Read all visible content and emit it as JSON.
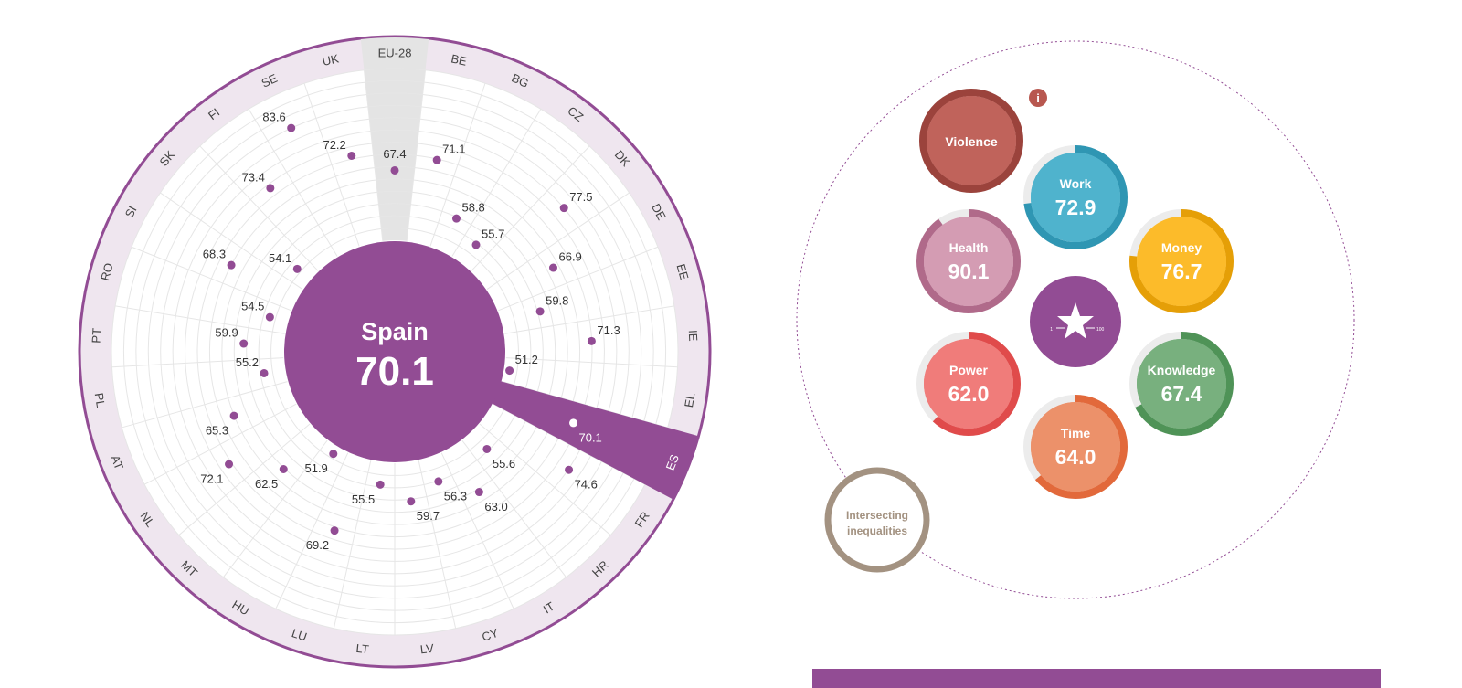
{
  "selected": {
    "country": "Spain",
    "code": "ES",
    "value": "70.1"
  },
  "colors": {
    "accent": "#924c94",
    "ring_fill": "#efe6ef",
    "eu_sector": "#e4e4e4",
    "grid": "#e6e6e6"
  },
  "chart_data": {
    "type": "radial-scatter",
    "scale": [
      0,
      100
    ],
    "highlight": "ES",
    "reference": "EU-28",
    "categories": [
      "EU-28",
      "BE",
      "BG",
      "CZ",
      "DK",
      "DE",
      "EE",
      "IE",
      "EL",
      "ES",
      "FR",
      "HR",
      "IT",
      "CY",
      "LV",
      "LT",
      "LU",
      "HU",
      "MT",
      "NL",
      "AT",
      "PL",
      "PT",
      "RO",
      "SI",
      "SK",
      "FI",
      "SE",
      "UK"
    ],
    "values": [
      67.4,
      71.1,
      58.8,
      55.7,
      77.5,
      66.9,
      59.8,
      71.3,
      51.2,
      70.1,
      74.6,
      55.6,
      63.0,
      56.3,
      59.7,
      55.5,
      69.2,
      51.9,
      62.5,
      72.1,
      65.3,
      55.2,
      59.9,
      54.5,
      68.3,
      54.1,
      73.4,
      83.6,
      72.2
    ],
    "labels": [
      "67.4",
      "71.1",
      "58.8",
      "55.7",
      "77.5",
      "66.9",
      "59.8",
      "71.3",
      "51.2",
      "70.1",
      "74.6",
      "55.6",
      "63.0",
      "56.3",
      "59.7",
      "55.5",
      "69.2",
      "51.9",
      "62.5",
      "72.1",
      "65.3",
      "55.2",
      "59.9",
      "54.5",
      "68.3",
      "54.1",
      "73.4",
      "83.6",
      "72.2"
    ]
  },
  "domains": [
    {
      "key": "violence",
      "name": "Violence",
      "value": "",
      "score": null,
      "color": "#b8574f",
      "dark": "#9b433c",
      "light": "#c0635b"
    },
    {
      "key": "work",
      "name": "Work",
      "value": "72.9",
      "score": 72.9,
      "color": "#48aec9",
      "dark": "#2f96b3",
      "light": "#4fb3cd"
    },
    {
      "key": "health",
      "name": "Health",
      "value": "90.1",
      "score": 90.1,
      "color": "#c47a99",
      "dark": "#b06a8a",
      "light": "#d49cb3"
    },
    {
      "key": "money",
      "name": "Money",
      "value": "76.7",
      "score": 76.7,
      "color": "#f5b118",
      "dark": "#e59f07",
      "light": "#fcbb2a"
    },
    {
      "key": "power",
      "name": "Power",
      "value": "62.0",
      "score": 62.0,
      "color": "#ee6a68",
      "dark": "#e04b4b",
      "light": "#f07c7a"
    },
    {
      "key": "knowledge",
      "name": "Knowledge",
      "value": "67.4",
      "score": 67.4,
      "color": "#68a56e",
      "dark": "#4f9357",
      "light": "#78b07e"
    },
    {
      "key": "time",
      "name": "Time",
      "value": "64.0",
      "score": 64.0,
      "color": "#e78557",
      "dark": "#e2693b",
      "light": "#ec916a"
    }
  ],
  "intersecting": {
    "line1": "Intersecting",
    "line2": "inequalities",
    "color": "#a39281"
  },
  "info_icon": {
    "glyph": "i",
    "color": "#b8574f"
  },
  "index_logo": {
    "min": "1",
    "max": "100"
  }
}
